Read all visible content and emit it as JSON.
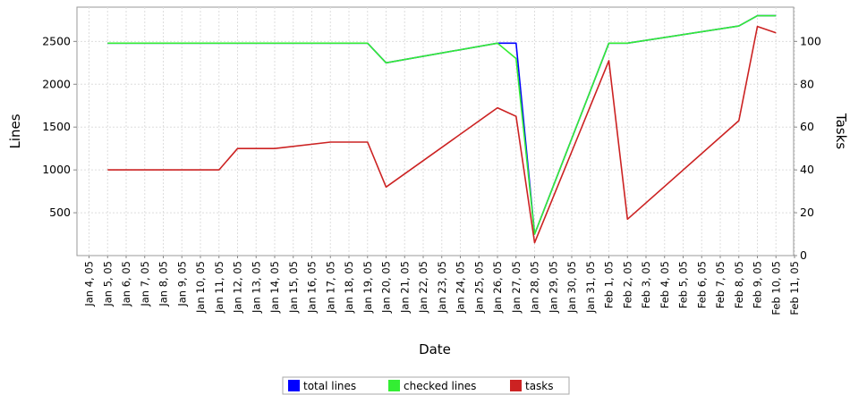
{
  "chart_data": {
    "type": "line",
    "xlabel": "Date",
    "ylabel": "Lines",
    "y2label": "Tasks",
    "ylim": [
      0,
      2900
    ],
    "y2lim": [
      0,
      116
    ],
    "yticks": [
      500,
      1000,
      1500,
      2000,
      2500
    ],
    "y2ticks": [
      0,
      20,
      40,
      60,
      80,
      100
    ],
    "grid": true,
    "legend_position": "bottom",
    "x_tick_labels": [
      "Jan 4, 05",
      "Jan 5, 05",
      "Jan 6, 05",
      "Jan 7, 05",
      "Jan 8, 05",
      "Jan 9, 05",
      "Jan 10, 05",
      "Jan 11, 05",
      "Jan 12, 05",
      "Jan 13, 05",
      "Jan 14, 05",
      "Jan 15, 05",
      "Jan 16, 05",
      "Jan 17, 05",
      "Jan 18, 05",
      "Jan 19, 05",
      "Jan 20, 05",
      "Jan 21, 05",
      "Jan 22, 05",
      "Jan 23, 05",
      "Jan 24, 05",
      "Jan 25, 05",
      "Jan 26, 05",
      "Jan 27, 05",
      "Jan 28, 05",
      "Jan 29, 05",
      "Jan 30, 05",
      "Jan 31, 05",
      "Feb 1, 05",
      "Feb 2, 05",
      "Feb 3, 05",
      "Feb 4, 05",
      "Feb 5, 05",
      "Feb 6, 05",
      "Feb 7, 05",
      "Feb 8, 05",
      "Feb 9, 05",
      "Feb 10, 05",
      "Feb 11, 05"
    ],
    "series": [
      {
        "name": "total lines",
        "axis": "left",
        "color": "#0000ff",
        "points": [
          {
            "x": "2005-01-05",
            "y": 2480
          },
          {
            "x": "2005-01-19",
            "y": 2480
          },
          {
            "x": "2005-01-20",
            "y": 2250
          },
          {
            "x": "2005-01-26",
            "y": 2480
          },
          {
            "x": "2005-01-27",
            "y": 2480
          },
          {
            "x": "2005-01-28",
            "y": 250
          },
          {
            "x": "2005-02-01",
            "y": 2480
          },
          {
            "x": "2005-02-02",
            "y": 2480
          },
          {
            "x": "2005-02-08",
            "y": 2680
          },
          {
            "x": "2005-02-09",
            "y": 2800
          },
          {
            "x": "2005-02-10",
            "y": 2800
          }
        ]
      },
      {
        "name": "checked lines",
        "axis": "left",
        "color": "#33ee33",
        "points": [
          {
            "x": "2005-01-05",
            "y": 2480
          },
          {
            "x": "2005-01-19",
            "y": 2480
          },
          {
            "x": "2005-01-20",
            "y": 2250
          },
          {
            "x": "2005-01-26",
            "y": 2480
          },
          {
            "x": "2005-01-27",
            "y": 2300
          },
          {
            "x": "2005-01-28",
            "y": 250
          },
          {
            "x": "2005-02-01",
            "y": 2480
          },
          {
            "x": "2005-02-02",
            "y": 2480
          },
          {
            "x": "2005-02-08",
            "y": 2680
          },
          {
            "x": "2005-02-09",
            "y": 2800
          },
          {
            "x": "2005-02-10",
            "y": 2800
          }
        ]
      },
      {
        "name": "tasks",
        "axis": "right",
        "color": "#cc2222",
        "points": [
          {
            "x": "2005-01-05",
            "y": 40
          },
          {
            "x": "2005-01-11",
            "y": 40
          },
          {
            "x": "2005-01-12",
            "y": 50
          },
          {
            "x": "2005-01-14",
            "y": 50
          },
          {
            "x": "2005-01-17",
            "y": 53
          },
          {
            "x": "2005-01-19",
            "y": 53
          },
          {
            "x": "2005-01-20",
            "y": 32
          },
          {
            "x": "2005-01-26",
            "y": 69
          },
          {
            "x": "2005-01-27",
            "y": 65
          },
          {
            "x": "2005-01-28",
            "y": 6
          },
          {
            "x": "2005-02-01",
            "y": 91
          },
          {
            "x": "2005-02-02",
            "y": 17
          },
          {
            "x": "2005-02-08",
            "y": 63
          },
          {
            "x": "2005-02-09",
            "y": 107
          },
          {
            "x": "2005-02-10",
            "y": 104
          }
        ]
      }
    ]
  }
}
